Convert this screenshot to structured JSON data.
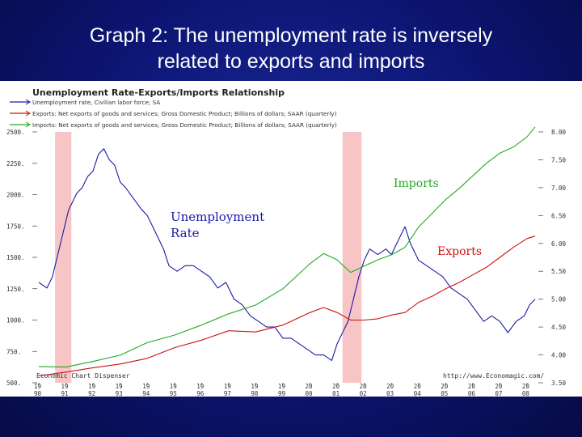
{
  "slide": {
    "title_line1": "Graph 2:  The unemployment rate is inversely",
    "title_line2": "related to exports and imports"
  },
  "chart_data": {
    "type": "line",
    "title": "Unemployment Rate-Exports/Imports Relationship",
    "legend": [
      {
        "text": "Unemployment rate, Civilian labor force; SA",
        "color": "#1a1aa8"
      },
      {
        "text": "Exports: Net exports of goods and services; Gross Domestic Product; Billions of dollars; SAAR (quarterly)",
        "color": "#cc1111"
      },
      {
        "text": "Imports: Net exports of goods and services; Gross Domestic Product; Billions of dollars; SAAR (quarterly)",
        "color": "#22aa22"
      }
    ],
    "legend_placement": "top-left",
    "left_axis": {
      "ticks": [
        "500.",
        "750.",
        "1000.",
        "1250.",
        "1500.",
        "1750.",
        "2000.",
        "2250.",
        "2500."
      ],
      "range": [
        500,
        2500
      ]
    },
    "right_axis": {
      "ticks": [
        "3.50",
        "4.00",
        "4.50",
        "5.00",
        "5.50",
        "6.00",
        "6.50",
        "7.00",
        "7.50",
        "8.00"
      ],
      "range": [
        3.5,
        8.0
      ]
    },
    "x_ticks": [
      {
        "top": "19",
        "bottom": "90"
      },
      {
        "top": "19",
        "bottom": "91"
      },
      {
        "top": "19",
        "bottom": "92"
      },
      {
        "top": "19",
        "bottom": "93"
      },
      {
        "top": "19",
        "bottom": "94"
      },
      {
        "top": "19",
        "bottom": "95"
      },
      {
        "top": "19",
        "bottom": "96"
      },
      {
        "top": "19",
        "bottom": "97"
      },
      {
        "top": "19",
        "bottom": "98"
      },
      {
        "top": "19",
        "bottom": "99"
      },
      {
        "top": "20",
        "bottom": "00"
      },
      {
        "top": "20",
        "bottom": "01"
      },
      {
        "top": "20",
        "bottom": "02"
      },
      {
        "top": "20",
        "bottom": "03"
      },
      {
        "top": "20",
        "bottom": "04"
      },
      {
        "top": "20",
        "bottom": "05"
      },
      {
        "top": "20",
        "bottom": "06"
      },
      {
        "top": "20",
        "bottom": "07"
      },
      {
        "top": "20",
        "bottom": "08"
      }
    ],
    "x_range": [
      1990,
      2008.3
    ],
    "recessions": [
      [
        1990.6,
        1991.2
      ],
      [
        2001.2,
        2001.9
      ]
    ],
    "series": [
      {
        "name": "Unemployment rate",
        "axis": "right",
        "color": "#1a1aa8",
        "x": [
          1990.0,
          1990.3,
          1990.5,
          1990.7,
          1990.9,
          1991.1,
          1991.4,
          1991.6,
          1991.8,
          1992.0,
          1992.2,
          1992.4,
          1992.6,
          1992.8,
          1993.0,
          1993.2,
          1993.5,
          1993.8,
          1994.0,
          1994.3,
          1994.6,
          1994.8,
          1995.1,
          1995.4,
          1995.7,
          1996.0,
          1996.3,
          1996.6,
          1996.9,
          1997.2,
          1997.5,
          1997.8,
          1998.1,
          1998.4,
          1998.7,
          1999.0,
          1999.3,
          1999.6,
          1999.9,
          2000.2,
          2000.5,
          2000.8,
          2001.0,
          2001.2,
          2001.4,
          2001.6,
          2001.8,
          2002.0,
          2002.2,
          2002.5,
          2002.8,
          2003.0,
          2003.3,
          2003.5,
          2003.7,
          2004.0,
          2004.3,
          2004.6,
          2004.9,
          2005.2,
          2005.5,
          2005.8,
          2006.1,
          2006.4,
          2006.7,
          2007.0,
          2007.3,
          2007.6,
          2007.9,
          2008.1,
          2008.3
        ],
        "values": [
          5.3,
          5.2,
          5.4,
          5.8,
          6.2,
          6.6,
          6.9,
          7.0,
          7.2,
          7.3,
          7.6,
          7.7,
          7.5,
          7.4,
          7.1,
          7.0,
          6.8,
          6.6,
          6.5,
          6.2,
          5.9,
          5.6,
          5.5,
          5.6,
          5.6,
          5.5,
          5.4,
          5.2,
          5.3,
          5.0,
          4.9,
          4.7,
          4.6,
          4.5,
          4.5,
          4.3,
          4.3,
          4.2,
          4.1,
          4.0,
          4.0,
          3.9,
          4.2,
          4.4,
          4.6,
          5.0,
          5.4,
          5.7,
          5.9,
          5.8,
          5.9,
          5.8,
          6.1,
          6.3,
          6.0,
          5.7,
          5.6,
          5.5,
          5.4,
          5.2,
          5.1,
          5.0,
          4.8,
          4.6,
          4.7,
          4.6,
          4.4,
          4.6,
          4.7,
          4.9,
          5.0
        ]
      },
      {
        "name": "Exports",
        "axis": "left",
        "color": "#cc1111",
        "x": [
          1990,
          1991,
          1992,
          1993,
          1994,
          1995,
          1996,
          1997,
          1998,
          1999,
          2000,
          2000.5,
          2001,
          2001.5,
          2002,
          2002.5,
          2003,
          2003.5,
          2004,
          2004.5,
          2005,
          2005.5,
          2006,
          2006.5,
          2007,
          2007.5,
          2008,
          2008.3
        ],
        "values": [
          555,
          585,
          620,
          650,
          695,
          780,
          840,
          915,
          905,
          960,
          1060,
          1100,
          1060,
          1000,
          1000,
          1010,
          1040,
          1060,
          1140,
          1190,
          1250,
          1300,
          1360,
          1420,
          1500,
          1580,
          1650,
          1670
        ]
      },
      {
        "name": "Imports",
        "axis": "left",
        "color": "#22aa22",
        "x": [
          1990,
          1991,
          1992,
          1993,
          1994,
          1995,
          1996,
          1997,
          1998,
          1999,
          2000,
          2000.5,
          2001,
          2001.5,
          2002,
          2002.5,
          2003,
          2003.5,
          2004,
          2004.5,
          2005,
          2005.5,
          2006,
          2006.5,
          2007,
          2007.5,
          2008,
          2008.3
        ],
        "values": [
          630,
          625,
          670,
          720,
          820,
          880,
          960,
          1050,
          1120,
          1250,
          1450,
          1530,
          1480,
          1380,
          1430,
          1480,
          1520,
          1580,
          1740,
          1850,
          1960,
          2050,
          2150,
          2250,
          2330,
          2380,
          2460,
          2540
        ]
      }
    ],
    "annotations": {
      "imports": "Imports",
      "exports": "Exports",
      "unemployment": [
        "Unemployment",
        "Rate"
      ]
    },
    "footer_left": "Economic Chart Dispenser",
    "footer_right": "http://www.Economagic.com/"
  }
}
